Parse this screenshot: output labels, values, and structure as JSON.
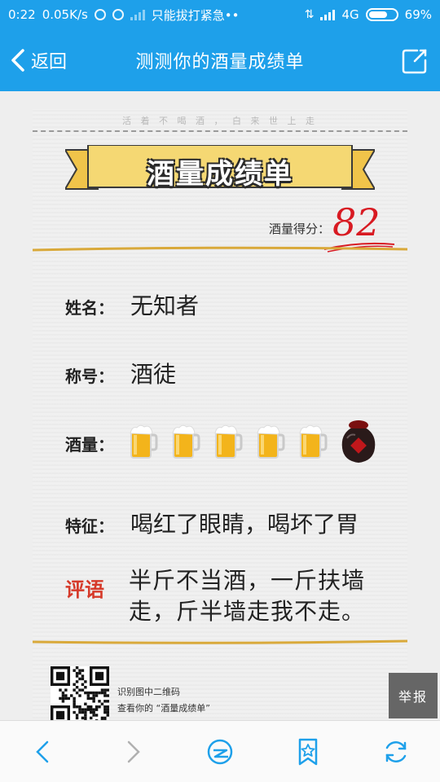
{
  "statusbar": {
    "time": "0:22",
    "speed": "0.05K/s",
    "notification": "只能拔打紧急••",
    "network": "4G",
    "battery": "69%",
    "battery_level": 0.69
  },
  "navbar": {
    "back_label": "返回",
    "title": "测测你的酒量成绩单"
  },
  "card": {
    "motto": "活 着 不 喝 酒 ， 白 来 世 上 走",
    "banner_title": "酒量成绩单",
    "score_label": "酒量得分：",
    "score_value": "82",
    "rows": {
      "name_label": "姓名：",
      "name_value": "无知者",
      "title_label": "称号：",
      "title_value": "酒徒",
      "capacity_label": "酒量：",
      "capacity_mugs": 5,
      "capacity_jars": 1,
      "feature_label": "特征：",
      "feature_value": "喝红了眼睛，喝坏了胃",
      "comment_label": "评语",
      "comment_value": "半斤不当酒，一斤扶墙走，斤半墙走我不走。"
    },
    "qr_line1": "识别图中二维码",
    "qr_line2": "查看你的 “酒量成绩单”"
  },
  "report_label": "举报",
  "colors": {
    "accent": "#1ea0ea",
    "score_red": "#d81a22",
    "banner_yellow": "#f5d873",
    "gold_line": "#d9a93a"
  },
  "icons": [
    "back-chevron-icon",
    "share-icon",
    "prev-icon",
    "next-icon",
    "qzone-icon",
    "bookmark-star-icon",
    "refresh-icon"
  ]
}
